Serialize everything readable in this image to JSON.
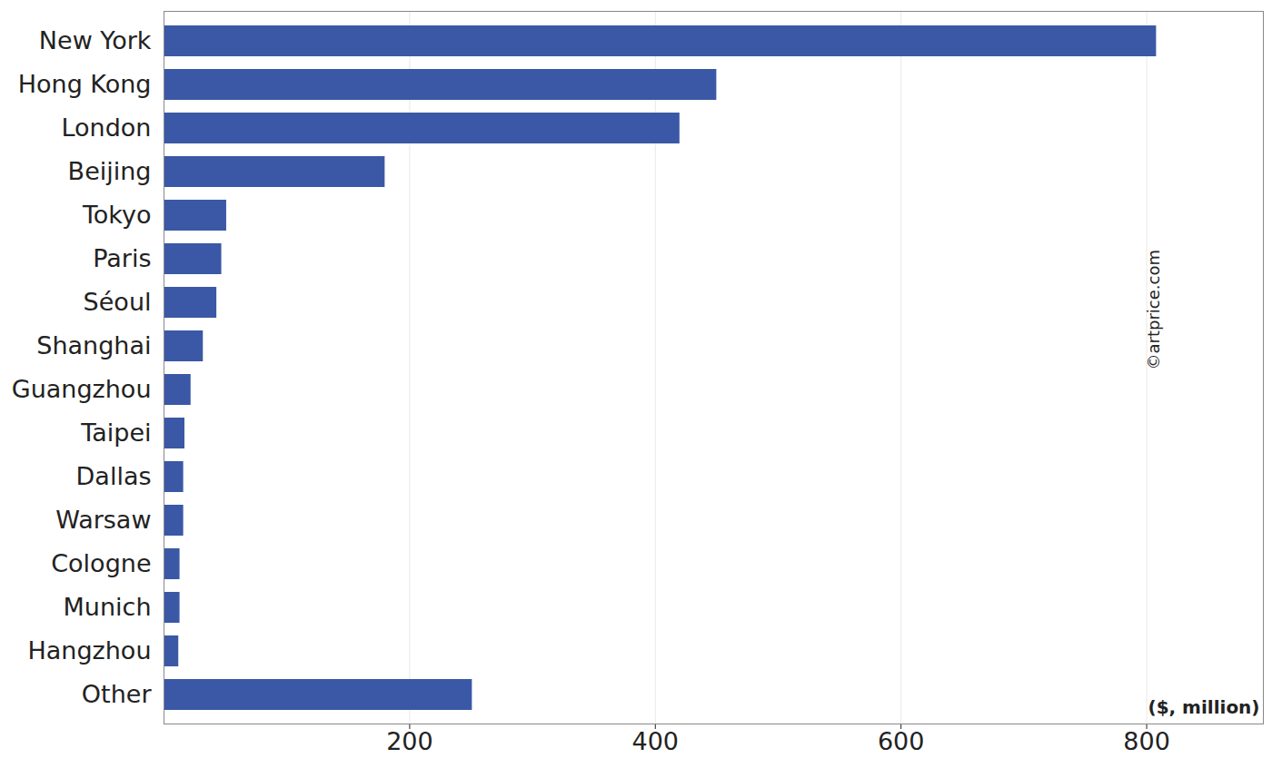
{
  "chart_data": {
    "type": "bar",
    "orientation": "horizontal",
    "categories": [
      "New York",
      "Hong Kong",
      "London",
      "Beijing",
      "Tokyo",
      "Paris",
      "Séoul",
      "Shanghai",
      "Guangzhou",
      "Taipei",
      "Dallas",
      "Warsaw",
      "Cologne",
      "Munich",
      "Hangzhou",
      "Other"
    ],
    "values": [
      808,
      450,
      420,
      180,
      51,
      47,
      43,
      32,
      22,
      17,
      16,
      16,
      13,
      13,
      12,
      251
    ],
    "color": "#3a58a5",
    "x_label": "($, million)",
    "annotation": "©artprice.com",
    "xlim": [
      0,
      895
    ],
    "xticks": [
      200,
      400,
      600,
      800
    ],
    "grid": true
  }
}
